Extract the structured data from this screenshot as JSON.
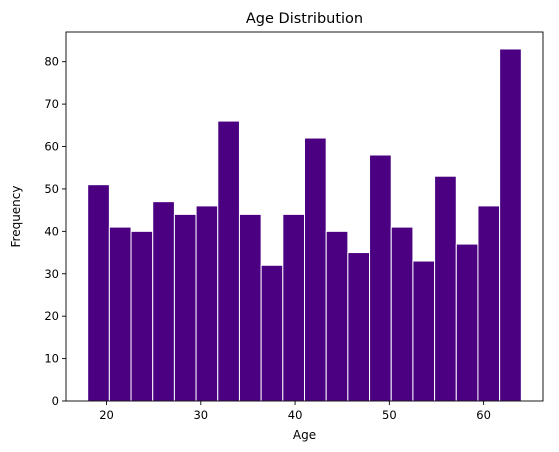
{
  "chart_data": {
    "type": "bar",
    "title": "Age Distribution",
    "xlabel": "Age",
    "ylabel": "Frequency",
    "x_range": [
      18,
      64
    ],
    "bin_width": 2.3,
    "xlim": [
      15.7,
      66.3
    ],
    "ylim": [
      0,
      87
    ],
    "x_ticks": [
      20,
      30,
      40,
      50,
      60
    ],
    "y_ticks": [
      0,
      10,
      20,
      30,
      40,
      50,
      60,
      70,
      80
    ],
    "values": [
      51,
      41,
      40,
      47,
      44,
      46,
      66,
      44,
      32,
      44,
      62,
      40,
      35,
      58,
      41,
      33,
      53,
      37,
      46,
      83
    ],
    "bar_color": "#4b0082",
    "edge_color": "#ffffff",
    "grid": false,
    "legend": "none"
  }
}
